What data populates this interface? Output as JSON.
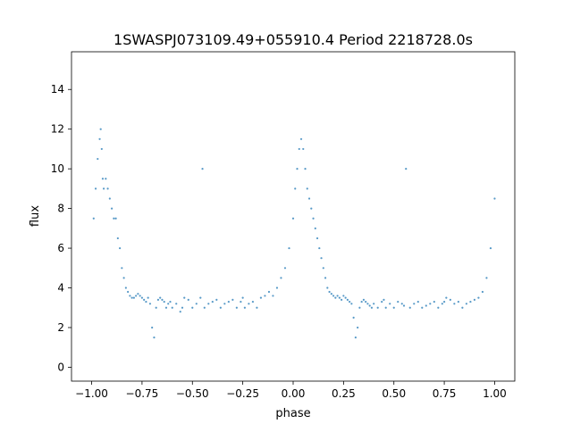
{
  "chart_data": {
    "type": "scatter",
    "title": "1SWASPJ073109.49+055910.4 Period 2218728.0s",
    "xlabel": "phase",
    "ylabel": "flux",
    "xlim": [
      -1.1,
      1.1
    ],
    "ylim": [
      -0.7,
      15.9
    ],
    "x_ticks": [
      -1.0,
      -0.75,
      -0.5,
      -0.25,
      0.0,
      0.25,
      0.5,
      0.75,
      1.0
    ],
    "x_tick_labels": [
      "−1.00",
      "−0.75",
      "−0.50",
      "−0.25",
      "0.00",
      "0.25",
      "0.50",
      "0.75",
      "1.00"
    ],
    "y_ticks": [
      0,
      2,
      4,
      6,
      8,
      10,
      12,
      14
    ],
    "y_tick_labels": [
      "0",
      "2",
      "4",
      "6",
      "8",
      "10",
      "12",
      "14"
    ],
    "grid": false,
    "legend": "none",
    "marker_color": "#1f77b4",
    "marker": "small dots",
    "series": [
      {
        "x": [
          -0.99,
          -0.98,
          -0.97,
          -0.96,
          -0.955,
          -0.95,
          -0.945,
          -0.94,
          -0.93,
          -0.92,
          -0.91,
          -0.9,
          -0.89,
          -0.88,
          -0.87,
          -0.86,
          -0.85,
          -0.84,
          -0.83,
          -0.82,
          -0.81,
          -0.8,
          -0.79,
          -0.78,
          -0.77,
          -0.76,
          -0.75,
          -0.74,
          -0.73,
          -0.72,
          -0.71,
          -0.7,
          -0.69,
          -0.68,
          -0.67,
          -0.66,
          -0.65,
          -0.64,
          -0.63,
          -0.62,
          -0.61,
          -0.6,
          -0.58,
          -0.56,
          -0.55,
          -0.54,
          -0.52,
          -0.5,
          -0.48,
          -0.46,
          -0.45,
          -0.44,
          -0.42,
          -0.4,
          -0.38,
          -0.36,
          -0.34,
          -0.32,
          -0.3,
          -0.28,
          -0.26,
          -0.25,
          -0.24,
          -0.22,
          -0.2,
          -0.18,
          -0.16,
          -0.14,
          -0.12,
          -0.1,
          -0.08,
          -0.06,
          -0.04,
          -0.02,
          0.0,
          0.01,
          0.02,
          0.03,
          0.04,
          0.05,
          0.06,
          0.07,
          0.08,
          0.09,
          0.1,
          0.11,
          0.12,
          0.13,
          0.14,
          0.15,
          0.16,
          0.17,
          0.18,
          0.19,
          0.2,
          0.21,
          0.22,
          0.23,
          0.24,
          0.25,
          0.26,
          0.27,
          0.28,
          0.29,
          0.3,
          0.31,
          0.32,
          0.33,
          0.34,
          0.35,
          0.36,
          0.37,
          0.38,
          0.39,
          0.4,
          0.42,
          0.44,
          0.45,
          0.46,
          0.48,
          0.5,
          0.52,
          0.54,
          0.55,
          0.56,
          0.58,
          0.6,
          0.62,
          0.64,
          0.66,
          0.68,
          0.7,
          0.72,
          0.74,
          0.75,
          0.76,
          0.78,
          0.8,
          0.82,
          0.84,
          0.86,
          0.88,
          0.9,
          0.92,
          0.94,
          0.96,
          0.98,
          1.0
        ],
        "y": [
          7.5,
          9.0,
          10.5,
          11.5,
          12.0,
          11.0,
          9.5,
          9.0,
          9.5,
          9.0,
          8.5,
          8.0,
          7.5,
          7.5,
          6.5,
          6.0,
          5.0,
          4.5,
          4.0,
          3.8,
          3.6,
          3.5,
          3.5,
          3.6,
          3.7,
          3.6,
          3.5,
          3.4,
          3.3,
          3.5,
          3.2,
          2.0,
          1.5,
          3.0,
          3.4,
          3.5,
          3.4,
          3.3,
          3.0,
          3.2,
          3.3,
          3.0,
          3.2,
          2.8,
          3.0,
          3.5,
          3.4,
          3.0,
          3.2,
          3.5,
          10.0,
          3.0,
          3.2,
          3.3,
          3.4,
          3.0,
          3.2,
          3.3,
          3.4,
          3.0,
          3.3,
          3.5,
          3.0,
          3.2,
          3.3,
          3.0,
          3.5,
          3.6,
          3.8,
          3.6,
          4.0,
          4.5,
          5.0,
          6.0,
          7.5,
          9.0,
          10.0,
          11.0,
          11.5,
          11.0,
          10.0,
          9.0,
          8.5,
          8.0,
          7.5,
          7.0,
          6.5,
          6.0,
          5.5,
          5.0,
          4.5,
          4.0,
          3.8,
          3.7,
          3.6,
          3.5,
          3.6,
          3.5,
          3.4,
          3.6,
          3.5,
          3.4,
          3.3,
          3.2,
          2.5,
          1.5,
          2.0,
          3.0,
          3.3,
          3.4,
          3.3,
          3.2,
          3.1,
          3.0,
          3.2,
          3.0,
          3.3,
          3.4,
          3.0,
          3.2,
          3.0,
          3.3,
          3.2,
          3.1,
          10.0,
          3.0,
          3.2,
          3.3,
          3.0,
          3.1,
          3.2,
          3.3,
          3.0,
          3.2,
          3.3,
          3.5,
          3.4,
          3.2,
          3.3,
          3.0,
          3.2,
          3.3,
          3.4,
          3.5,
          3.8,
          4.5,
          6.0,
          8.5
        ]
      }
    ]
  }
}
